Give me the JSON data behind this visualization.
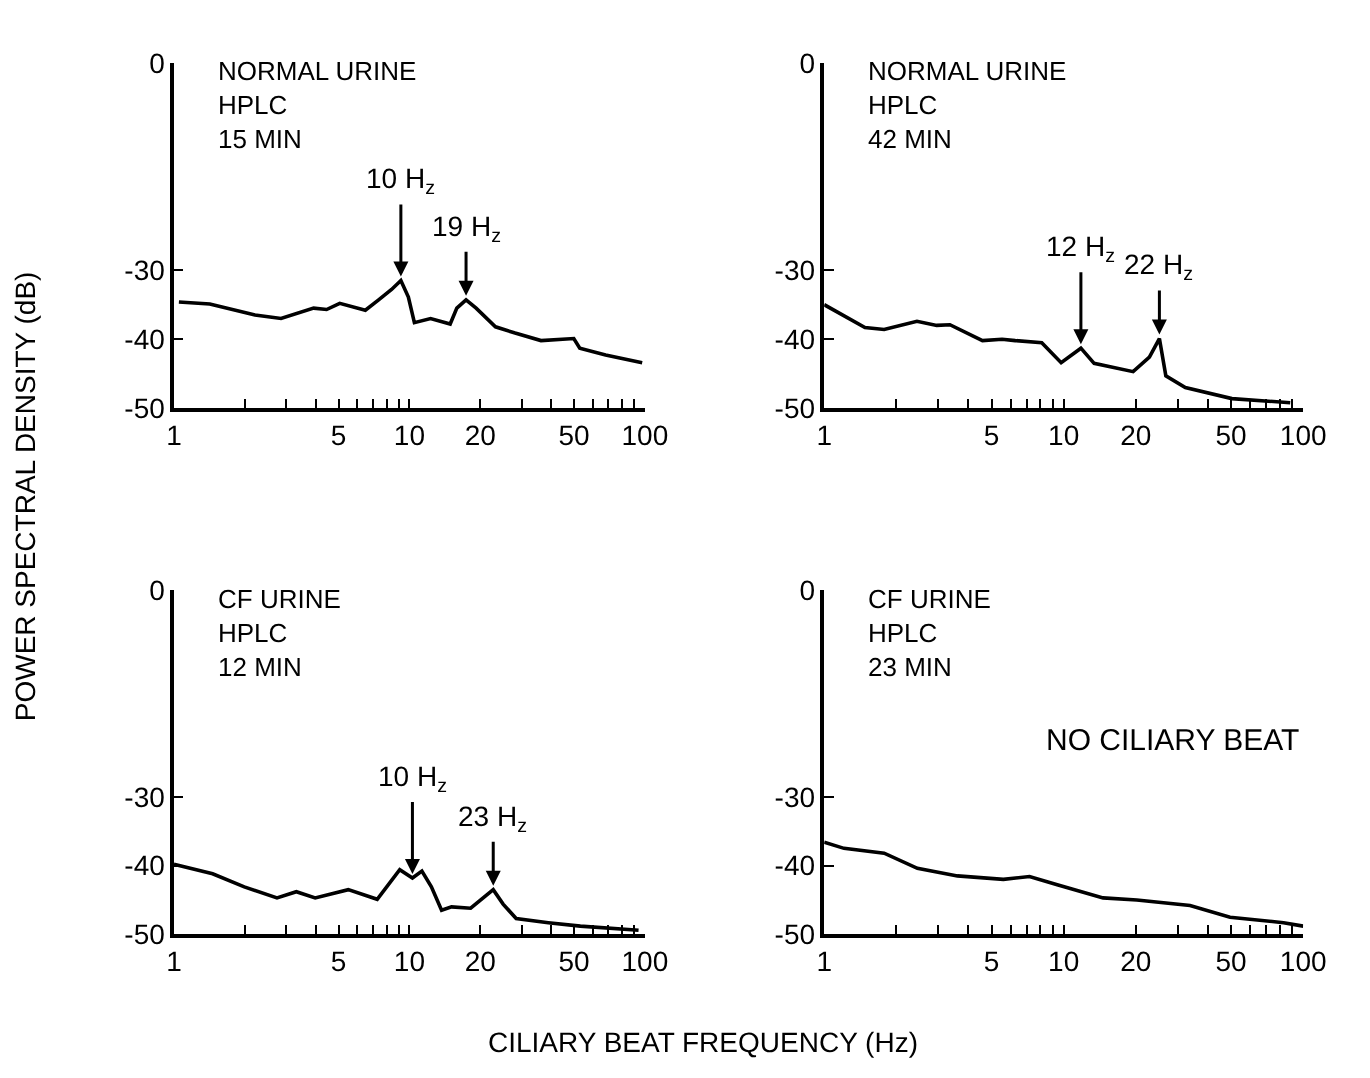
{
  "chart_data": [
    {
      "type": "line",
      "title": "NORMAL URINE\nHPLC\n15 MIN",
      "ylabel": "POWER SPECTRAL DENSITY (dB)",
      "log": "x",
      "marker": "none",
      "line_style": "solid",
      "xlim": [
        1,
        100
      ],
      "xticks": [
        1,
        {
          "value": 2,
          "label": null
        },
        {
          "value": 3,
          "label": null
        },
        {
          "value": 4,
          "label": null
        },
        5,
        {
          "value": 6,
          "label": null
        },
        {
          "value": 7,
          "label": null
        },
        {
          "value": 8,
          "label": null
        },
        {
          "value": 9,
          "label": null
        },
        10,
        20,
        {
          "value": 30,
          "label": null
        },
        {
          "value": 40,
          "label": null
        },
        50,
        {
          "value": 60,
          "label": null
        },
        {
          "value": 70,
          "label": null
        },
        {
          "value": 80,
          "label": null
        },
        {
          "value": 90,
          "label": null
        },
        100
      ],
      "ylim": [
        -50,
        0
      ],
      "yticks": [
        -50,
        -40,
        -30,
        0
      ],
      "series": [
        {
          "color": "#000000",
          "x": [
            1.05,
            1.42,
            2.21,
            2.85,
            3.92,
            4.45,
            5.06,
            6.5,
            7.4,
            8.4,
            9.2,
            9.9,
            10.5,
            12.3,
            14.9,
            15.9,
            17.4,
            19.2,
            23.2,
            28.1,
            36.2,
            49.9,
            52.9,
            68.1,
            97.4
          ],
          "values": [
            -34.6,
            -34.9,
            -36.5,
            -37.0,
            -35.5,
            -35.7,
            -34.8,
            -35.8,
            -34.3,
            -32.8,
            -31.5,
            -33.9,
            -37.6,
            -37.0,
            -37.8,
            -35.5,
            -34.3,
            -35.5,
            -38.2,
            -39.1,
            -40.2,
            -39.9,
            -41.3,
            -42.3,
            -43.4
          ]
        }
      ],
      "annotations": [
        {
          "text": "10 H$_{z}$",
          "x": 9.2,
          "y": -31.5
        },
        {
          "text": "19 H$_{z}$",
          "x": 17.4,
          "y": -34.3
        }
      ]
    },
    {
      "type": "line",
      "title": "NORMAL URINE\nHPLC\n42 MIN",
      "log": "x",
      "marker": "none",
      "line_style": "solid",
      "xlim": [
        1,
        100
      ],
      "xticks": [
        1,
        {
          "value": 2,
          "label": null
        },
        {
          "value": 3,
          "label": null
        },
        {
          "value": 4,
          "label": null
        },
        5,
        {
          "value": 6,
          "label": null
        },
        {
          "value": 7,
          "label": null
        },
        {
          "value": 8,
          "label": null
        },
        {
          "value": 9,
          "label": null
        },
        10,
        20,
        {
          "value": 30,
          "label": null
        },
        {
          "value": 40,
          "label": null
        },
        50,
        {
          "value": 60,
          "label": null
        },
        {
          "value": 70,
          "label": null
        },
        {
          "value": 80,
          "label": null
        },
        {
          "value": 90,
          "label": null
        },
        100
      ],
      "ylim": [
        -50,
        0
      ],
      "yticks": [
        -50,
        -40,
        -30,
        0
      ],
      "series": [
        {
          "color": "#000000",
          "x": [
            1,
            1.48,
            1.78,
            2.44,
            2.95,
            3.35,
            4.58,
            5.53,
            6.28,
            8.1,
            9.76,
            11.8,
            13.4,
            19.5,
            22.8,
            25.1,
            26.7,
            32.2,
            50.4,
            88.3
          ],
          "values": [
            -35.0,
            -38.3,
            -38.6,
            -37.4,
            -38.0,
            -37.9,
            -40.2,
            -40.0,
            -40.2,
            -40.5,
            -43.4,
            -41.3,
            -43.5,
            -44.7,
            -42.6,
            -39.9,
            -45.3,
            -47.0,
            -48.6,
            -49.2
          ]
        }
      ],
      "annotations": [
        {
          "text": "12 H$_{z}$",
          "x": 11.8,
          "y": -41.3
        },
        {
          "text": "22 H$_{z}$",
          "x": 25.1,
          "y": -39.9
        }
      ]
    },
    {
      "type": "line",
      "title": "CF URINE\nHPLC\n12 MIN",
      "xlabel": "CILIARY BEAT FREQUENCY (Hz)",
      "log": "x",
      "marker": "none",
      "line_style": "solid",
      "xlim": [
        1,
        100
      ],
      "xticks": [
        1,
        {
          "value": 2,
          "label": null
        },
        {
          "value": 3,
          "label": null
        },
        {
          "value": 4,
          "label": null
        },
        5,
        {
          "value": 6,
          "label": null
        },
        {
          "value": 7,
          "label": null
        },
        {
          "value": 8,
          "label": null
        },
        {
          "value": 9,
          "label": null
        },
        10,
        20,
        {
          "value": 30,
          "label": null
        },
        {
          "value": 40,
          "label": null
        },
        50,
        {
          "value": 60,
          "label": null
        },
        {
          "value": 70,
          "label": null
        },
        {
          "value": 80,
          "label": null
        },
        {
          "value": 90,
          "label": null
        },
        100
      ],
      "ylim": [
        -50,
        0
      ],
      "yticks": [
        -50,
        -40,
        -30,
        0
      ],
      "series": [
        {
          "color": "#000000",
          "x": [
            1,
            1.46,
            1.99,
            2.74,
            3.31,
            3.98,
            5.5,
            7.3,
            9.1,
            10.3,
            11.3,
            12.4,
            13.7,
            15.1,
            18.2,
            22.7,
            25.0,
            28.4,
            38.9,
            53.2,
            94
          ],
          "values": [
            -39.8,
            -41.2,
            -43.1,
            -44.7,
            -43.8,
            -44.7,
            -43.5,
            -44.9,
            -40.6,
            -41.8,
            -40.8,
            -43.1,
            -46.5,
            -46.0,
            -46.2,
            -43.5,
            -45.6,
            -47.7,
            -48.3,
            -48.8,
            -49.4
          ]
        }
      ],
      "annotations": [
        {
          "text": "10 H$_{z}$",
          "x": 10.3,
          "y": -41.8
        },
        {
          "text": "23 H$_{z}$",
          "x": 22.7,
          "y": -43.5
        }
      ]
    },
    {
      "type": "line",
      "title": "CF URINE\nHPLC\n23 MIN",
      "log": "x",
      "marker": "none",
      "line_style": "solid",
      "xlim": [
        1,
        100
      ],
      "xticks": [
        1,
        {
          "value": 2,
          "label": null
        },
        {
          "value": 3,
          "label": null
        },
        {
          "value": 4,
          "label": null
        },
        5,
        {
          "value": 6,
          "label": null
        },
        {
          "value": 7,
          "label": null
        },
        {
          "value": 8,
          "label": null
        },
        {
          "value": 9,
          "label": null
        },
        10,
        20,
        {
          "value": 30,
          "label": null
        },
        {
          "value": 40,
          "label": null
        },
        50,
        {
          "value": 60,
          "label": null
        },
        {
          "value": 70,
          "label": null
        },
        {
          "value": 80,
          "label": null
        },
        {
          "value": 90,
          "label": null
        },
        100
      ],
      "ylim": [
        -50,
        0
      ],
      "yticks": [
        -50,
        -40,
        -30,
        0
      ],
      "series": [
        {
          "color": "#000000",
          "x": [
            1,
            1.21,
            1.78,
            2.45,
            3.6,
            5.6,
            7.2,
            9.4,
            14.6,
            20.2,
            33.7,
            49.5,
            82.8,
            100
          ],
          "values": [
            -36.6,
            -37.5,
            -38.2,
            -40.4,
            -41.5,
            -42.0,
            -41.6,
            -42.8,
            -44.7,
            -45.0,
            -45.8,
            -47.5,
            -48.3,
            -48.8
          ]
        }
      ],
      "annotations": [
        "NO CILIARY BEAT"
      ]
    }
  ]
}
